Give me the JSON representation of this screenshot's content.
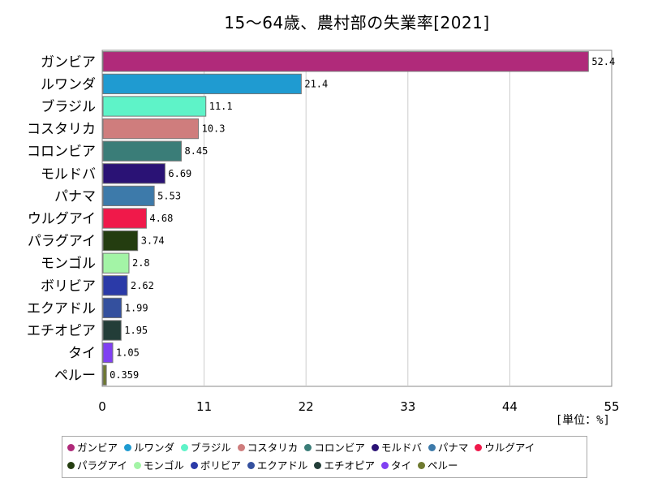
{
  "chart_data": {
    "type": "bar",
    "orientation": "horizontal",
    "title": "15～64歳、農村部の失業率[2021]",
    "unit": "[単位：%]",
    "categories": [
      "ガンビア",
      "ルワンダ",
      "ブラジル",
      "コスタリカ",
      "コロンビア",
      "モルドバ",
      "パナマ",
      "ウルグアイ",
      "パラグアイ",
      "モンゴル",
      "ボリビア",
      "エクアドル",
      "エチオピア",
      "タイ",
      "ペルー"
    ],
    "values": [
      52.4,
      21.4,
      11.1,
      10.3,
      8.45,
      6.69,
      5.53,
      4.68,
      3.74,
      2.8,
      2.62,
      1.99,
      1.95,
      1.05,
      0.359
    ],
    "value_labels": [
      "52.4",
      "21.4",
      "11.1",
      "10.3",
      "8.45",
      "6.69",
      "5.53",
      "4.68",
      "3.74",
      "2.8",
      "2.62",
      "1.99",
      "1.95",
      "1.05",
      "0.359"
    ],
    "colors": [
      "#b02a7a",
      "#1f9bd1",
      "#5ef3c8",
      "#cf7d7d",
      "#3a7d78",
      "#2a1275",
      "#3d7aaa",
      "#f0194a",
      "#243d10",
      "#a3f4a6",
      "#2b3aa8",
      "#34509e",
      "#233d38",
      "#8040f2",
      "#6f7a30"
    ],
    "xlim": [
      0,
      55
    ],
    "xticks": [
      0,
      11,
      22,
      33,
      44,
      55
    ],
    "grid": true,
    "legend_position": "bottom"
  }
}
